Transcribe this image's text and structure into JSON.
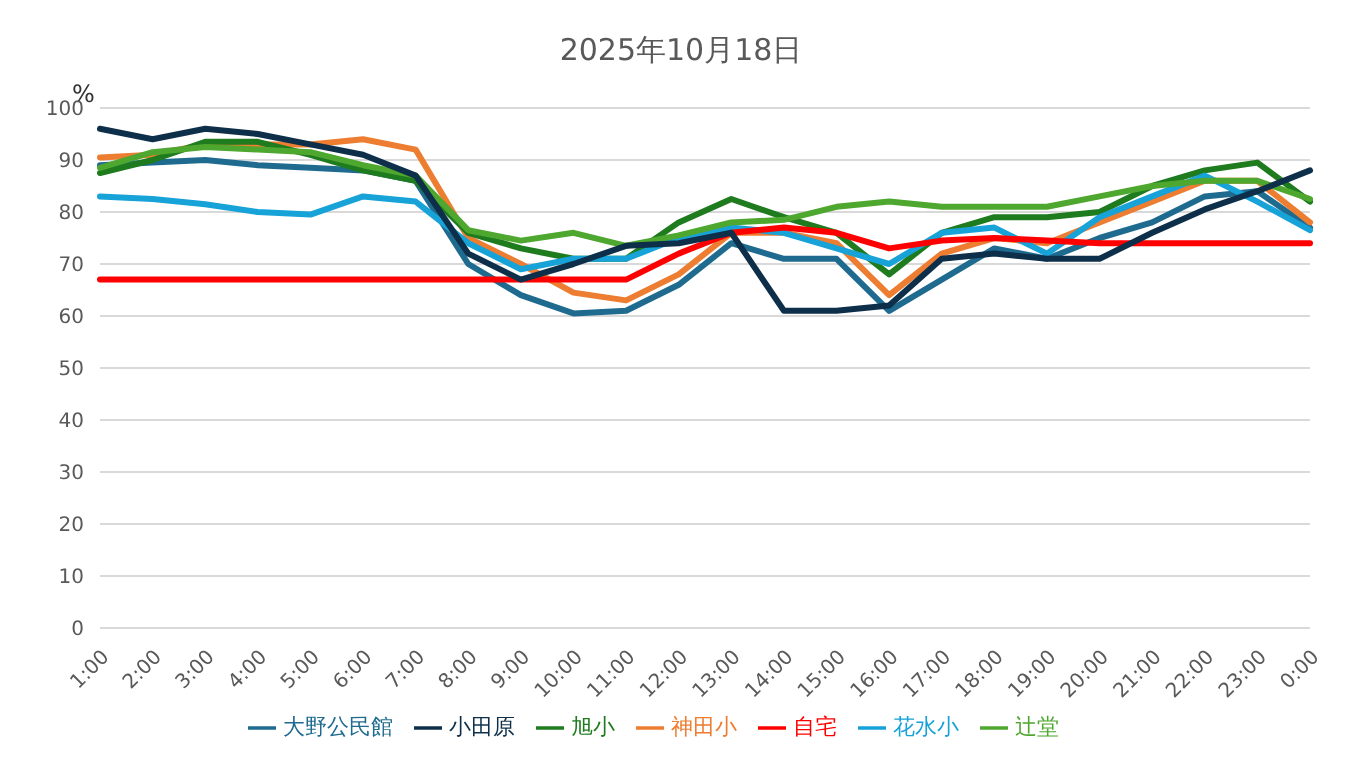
{
  "chart_data": {
    "type": "line",
    "title": "2025年10月18日",
    "ylabel": "%",
    "categories": [
      "1:00",
      "2:00",
      "3:00",
      "4:00",
      "5:00",
      "6:00",
      "7:00",
      "8:00",
      "9:00",
      "10:00",
      "11:00",
      "12:00",
      "13:00",
      "14:00",
      "15:00",
      "16:00",
      "17:00",
      "18:00",
      "19:00",
      "20:00",
      "21:00",
      "22:00",
      "23:00",
      "0:00"
    ],
    "series": [
      {
        "name": "大野公民館",
        "color": "#1f6b8f",
        "values": [
          89,
          89.5,
          90,
          89,
          88.5,
          88,
          86,
          70,
          64,
          60.5,
          61,
          66,
          74,
          71,
          71,
          61,
          67,
          73,
          71,
          75,
          78,
          83,
          84,
          77
        ]
      },
      {
        "name": "神田小",
        "color": "#ed7d31",
        "values": [
          90.5,
          91,
          93,
          93,
          93,
          94,
          92,
          75,
          70,
          64.5,
          63,
          68,
          76,
          76,
          74,
          64,
          72,
          75,
          74,
          78,
          82,
          86,
          86,
          78
        ]
      },
      {
        "name": "旭小",
        "color": "#1e7b1e",
        "values": [
          87.5,
          90,
          93.5,
          93.5,
          91,
          88,
          86,
          76,
          73,
          71,
          71,
          78,
          82.5,
          79,
          76,
          68,
          76,
          79,
          79,
          80,
          85,
          88,
          89.5,
          82
        ]
      },
      {
        "name": "花水小",
        "color": "#17a2d8",
        "values": [
          83,
          82.5,
          81.5,
          80,
          79.5,
          83,
          82,
          74,
          69,
          71,
          71,
          75,
          77,
          76,
          73,
          70,
          76,
          77,
          72,
          79,
          83,
          87,
          82,
          76.5
        ]
      },
      {
        "name": "自宅",
        "color": "#ff0000",
        "values": [
          67,
          67,
          67,
          67,
          67,
          67,
          67,
          67,
          67,
          67,
          67,
          72,
          76,
          77,
          76,
          73,
          74.5,
          75,
          74.5,
          74,
          74,
          74,
          74,
          74
        ]
      },
      {
        "name": "辻堂",
        "color": "#4ea72e",
        "values": [
          88.5,
          91.5,
          92.5,
          92,
          91.5,
          89,
          87,
          76.5,
          74.5,
          76,
          73.5,
          75.5,
          78,
          78.5,
          81,
          82,
          81,
          81,
          81,
          83,
          85,
          86,
          86,
          82.5
        ]
      },
      {
        "name": "小田原",
        "color": "#0e2f4a",
        "values": [
          96,
          94,
          96,
          95,
          93,
          91,
          87,
          72,
          67,
          70,
          73.5,
          74,
          76,
          61,
          61,
          62,
          71,
          72,
          71,
          71,
          76,
          80.5,
          84,
          88
        ]
      }
    ],
    "ylim": [
      0,
      100
    ],
    "yticks": [
      0,
      10,
      20,
      30,
      40,
      50,
      60,
      70,
      80,
      90,
      100
    ],
    "grid": "y",
    "legend": "bottom",
    "marker": "none",
    "line_style": "solid"
  }
}
